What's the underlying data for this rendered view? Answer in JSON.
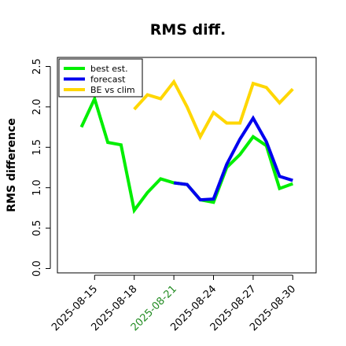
{
  "chart_data": {
    "type": "line",
    "title": "RMS diff.",
    "xlabel": "",
    "ylabel": "RMS difference",
    "ylim": [
      0,
      2.5
    ],
    "yticks": [
      "0.0",
      "0.5",
      "1.0",
      "1.5",
      "2.0",
      "2.5"
    ],
    "x": [
      "2025-08-14",
      "2025-08-15",
      "2025-08-16",
      "2025-08-17",
      "2025-08-18",
      "2025-08-19",
      "2025-08-20",
      "2025-08-21",
      "2025-08-22",
      "2025-08-23",
      "2025-08-24",
      "2025-08-25",
      "2025-08-26",
      "2025-08-27",
      "2025-08-28",
      "2025-08-29",
      "2025-08-30"
    ],
    "xtick_labels": [
      {
        "label": "2025-08-15",
        "color": "#000000"
      },
      {
        "label": "2025-08-18",
        "color": "#000000"
      },
      {
        "label": "2025-08-21",
        "color": "#228b22"
      },
      {
        "label": "2025-08-24",
        "color": "#000000"
      },
      {
        "label": "2025-08-27",
        "color": "#000000"
      },
      {
        "label": "2025-08-30",
        "color": "#000000"
      }
    ],
    "legend_position": "top-left",
    "grid": false,
    "series": [
      {
        "name": "best est.",
        "color": "#00ee00",
        "values": [
          1.75,
          2.1,
          1.56,
          1.53,
          0.72,
          0.94,
          1.11,
          1.06,
          1.04,
          0.85,
          0.82,
          1.25,
          1.41,
          1.63,
          1.52,
          0.99,
          1.05
        ]
      },
      {
        "name": "forecast",
        "color": "#0000ee",
        "values": [
          null,
          null,
          null,
          null,
          null,
          null,
          null,
          1.06,
          1.04,
          0.85,
          0.86,
          1.29,
          1.6,
          1.86,
          1.57,
          1.14,
          1.09
        ]
      },
      {
        "name": "BE vs clim",
        "color": "#ffd700",
        "values": [
          null,
          null,
          null,
          null,
          1.97,
          2.15,
          2.1,
          2.31,
          2.0,
          1.63,
          1.93,
          1.8,
          1.8,
          2.29,
          2.24,
          2.05,
          2.22
        ]
      }
    ]
  }
}
